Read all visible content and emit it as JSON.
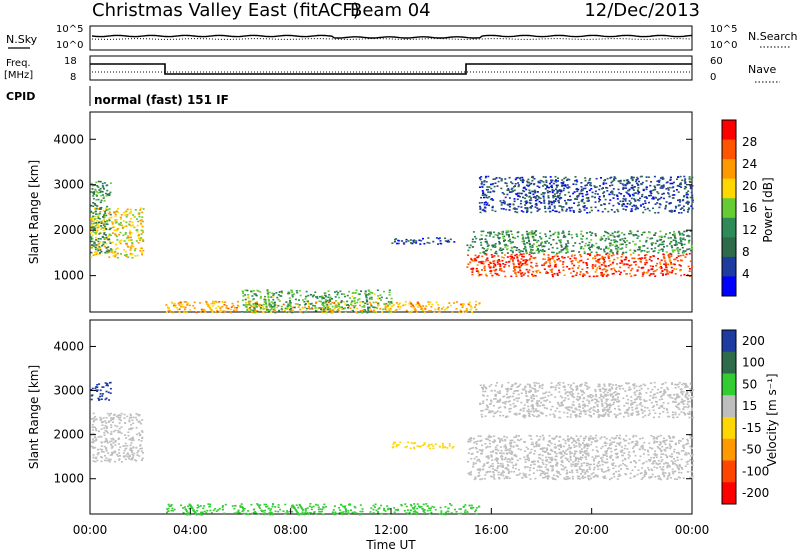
{
  "header": {
    "station": "Christmas Valley East (fitACF)",
    "beam": "Beam 04",
    "date": "12/Dec/2013"
  },
  "panels": {
    "nsky": {
      "left_label": "N.Sky",
      "right_label": "N.Search",
      "ticks": [
        "10^5",
        "10^0"
      ]
    },
    "freq": {
      "left_label_1": "Freq.",
      "left_label_2": "[MHz]",
      "right_label": "Nave",
      "left_ticks": [
        "18",
        "8"
      ],
      "right_ticks": [
        "60",
        "0"
      ]
    },
    "cpid": {
      "label": "CPID",
      "mode": "normal (fast) 151 IF"
    }
  },
  "colors": {
    "power": [
      "#0000ff",
      "#1e3ca0",
      "#2e6b4a",
      "#2e8b57",
      "#66cc33",
      "#ffd700",
      "#ff9900",
      "#ff5500",
      "#ff0000"
    ],
    "velocity": [
      "#1e3ca0",
      "#2e6b4a",
      "#32cd32",
      "#bebebe",
      "#ffd700",
      "#ff9900",
      "#ff4500",
      "#ff0000"
    ]
  },
  "chart_data": [
    {
      "type": "heatmap",
      "name": "power",
      "ylabel": "Slant Range [km]",
      "ylim": [
        200,
        4600
      ],
      "xlim": [
        0,
        24
      ],
      "yticks": [
        "1000",
        "2000",
        "3000",
        "4000"
      ],
      "colorbar_label": "Power [dB]",
      "colorbar_ticks": [
        "4",
        "8",
        "12",
        "16",
        "20",
        "24",
        "28"
      ],
      "colorbar_range": [
        0,
        32
      ],
      "regions": [
        {
          "t0": 0.0,
          "t1": 2.1,
          "r0": 1400,
          "r1": 2500,
          "value": 20
        },
        {
          "t0": 0.0,
          "t1": 0.8,
          "r0": 1500,
          "r1": 3100,
          "value": 12
        },
        {
          "t0": 3.0,
          "t1": 15.5,
          "r0": 200,
          "r1": 450,
          "value": 22
        },
        {
          "t0": 6.0,
          "t1": 12.0,
          "r0": 200,
          "r1": 700,
          "value": 14
        },
        {
          "t0": 12.0,
          "t1": 14.5,
          "r0": 1700,
          "r1": 1850,
          "value": 6
        },
        {
          "t0": 15.0,
          "t1": 24.0,
          "r0": 1000,
          "r1": 1500,
          "value": 28
        },
        {
          "t0": 15.0,
          "t1": 24.0,
          "r0": 1500,
          "r1": 2000,
          "value": 12
        },
        {
          "t0": 15.5,
          "t1": 24.0,
          "r0": 2400,
          "r1": 3200,
          "value": 6
        }
      ]
    },
    {
      "type": "heatmap",
      "name": "velocity",
      "ylabel": "Slant Range [km]",
      "xlabel": "Time UT",
      "ylim": [
        200,
        4600
      ],
      "xlim": [
        0,
        24
      ],
      "yticks": [
        "1000",
        "2000",
        "3000",
        "4000"
      ],
      "xticks": [
        "00:00",
        "04:00",
        "08:00",
        "12:00",
        "16:00",
        "20:00",
        "00:00"
      ],
      "colorbar_label": "Velocity [m s⁻¹]",
      "colorbar_ticks": [
        "200",
        "100",
        "50",
        "15",
        "-15",
        "-50",
        "-100",
        "-200"
      ],
      "regions": [
        {
          "t0": 0.0,
          "t1": 2.1,
          "r0": 1400,
          "r1": 2500,
          "value": 0
        },
        {
          "t0": 0.0,
          "t1": 0.8,
          "r0": 2800,
          "r1": 3200,
          "value": 150
        },
        {
          "t0": 3.0,
          "t1": 15.5,
          "r0": 200,
          "r1": 450,
          "value": 30
        },
        {
          "t0": 12.0,
          "t1": 14.5,
          "r0": 1700,
          "r1": 1850,
          "value": -40
        },
        {
          "t0": 15.0,
          "t1": 24.0,
          "r0": 1000,
          "r1": 2000,
          "value": 0
        },
        {
          "t0": 15.5,
          "t1": 24.0,
          "r0": 2400,
          "r1": 3200,
          "value": 0
        }
      ]
    }
  ]
}
